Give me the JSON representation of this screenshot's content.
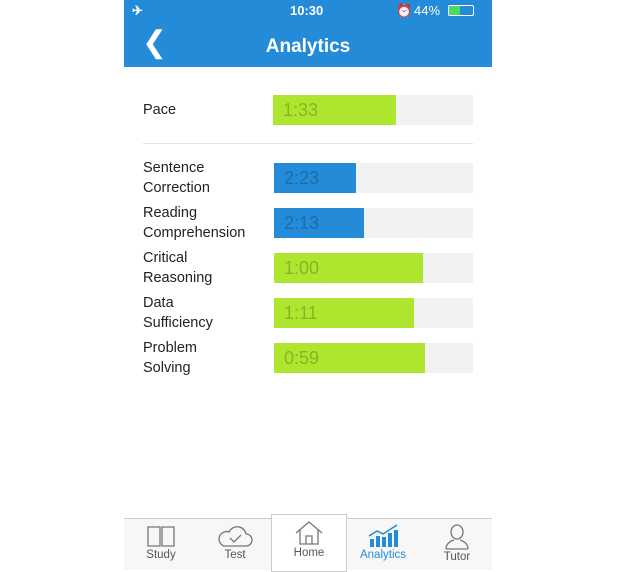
{
  "status_bar": {
    "time": "10:30",
    "battery": "44%",
    "battery_level": 44
  },
  "header": {
    "title": "Analytics",
    "back_icon": "chevron-left-icon"
  },
  "pace": {
    "label": "Pace",
    "value": "1:33",
    "fill_percent": 61.5,
    "color": "#aee62f"
  },
  "sections": [
    {
      "label": "Sentence\nCorrection",
      "value": "2:23",
      "fill_percent": 41,
      "color": "#248bd8"
    },
    {
      "label": "Reading\nComprehension",
      "value": "2:13",
      "fill_percent": 45,
      "color": "#248bd8"
    },
    {
      "label": "Critical\nReasoning",
      "value": "1:00",
      "fill_percent": 75,
      "color": "#aee62f"
    },
    {
      "label": "Data\nSufficiency",
      "value": "1:11",
      "fill_percent": 70.5,
      "color": "#aee62f"
    },
    {
      "label": "Problem\nSolving",
      "value": "0:59",
      "fill_percent": 76,
      "color": "#aee62f"
    }
  ],
  "tabs": [
    {
      "label": "Study",
      "icon": "book-icon"
    },
    {
      "label": "Test",
      "icon": "cloud-check-icon"
    },
    {
      "label": "Home",
      "icon": "home-icon"
    },
    {
      "label": "Analytics",
      "icon": "bar-chart-icon"
    },
    {
      "label": "Tutor",
      "icon": "user-icon"
    }
  ],
  "colors": {
    "accent": "#248bd8",
    "good": "#aee62f"
  }
}
